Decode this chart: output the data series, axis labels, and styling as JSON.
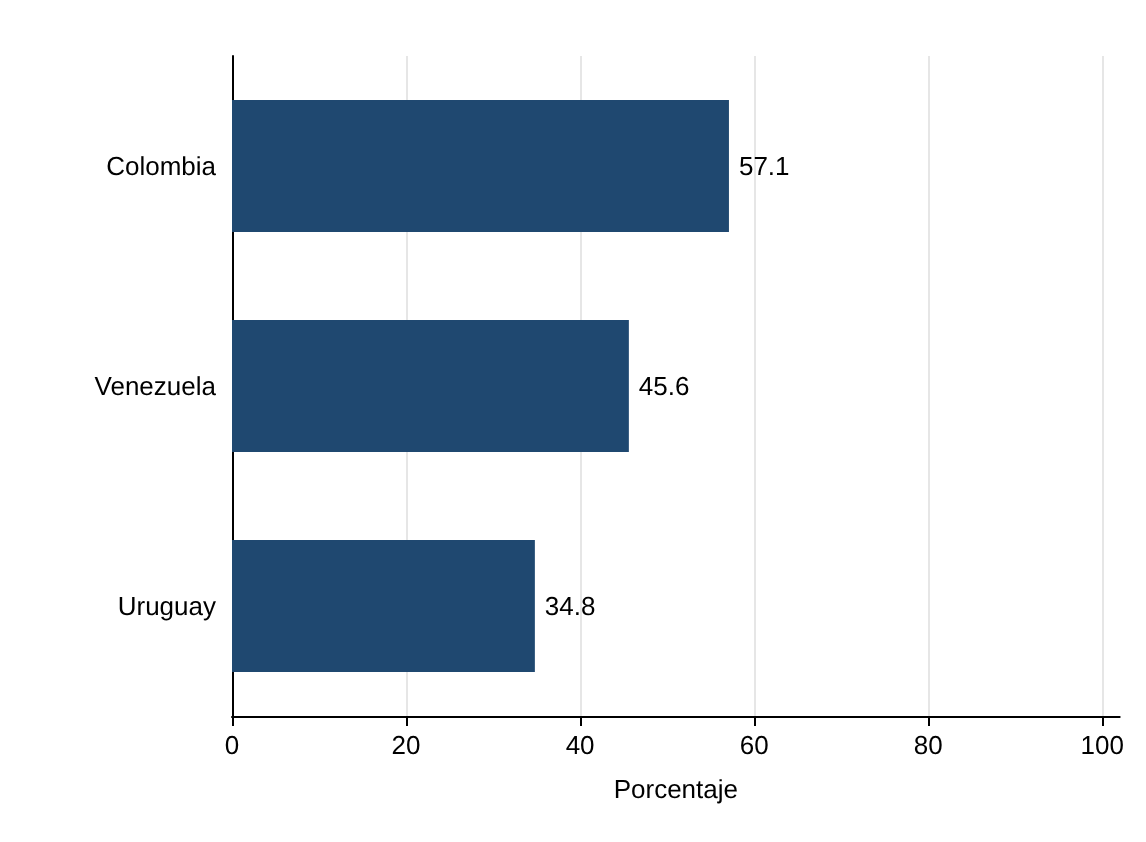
{
  "chart_data": {
    "type": "bar",
    "orientation": "horizontal",
    "categories": [
      "Colombia",
      "Venezuela",
      "Uruguay"
    ],
    "values": [
      57.1,
      45.6,
      34.8
    ],
    "color": "#1f4870",
    "xlabel": "Porcentaje",
    "xlim": [
      0,
      102
    ],
    "xticks": [
      0,
      20,
      40,
      60,
      80,
      100
    ],
    "grid": "x",
    "data_labels": true
  }
}
